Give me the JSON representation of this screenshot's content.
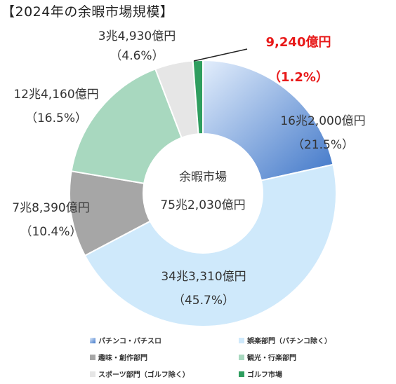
{
  "page_title": "【2024年の余暇市場規模】",
  "chart_data": {
    "type": "pie",
    "title": "【2024年の余暇市場規模】",
    "center_label_line1": "余暇市場",
    "center_label_line2": "75兆2,030億円",
    "categories": [
      "パチンコ・パチスロ",
      "娯楽部門（パチンコ除く）",
      "趣味・創作部門",
      "観光・行楽部門",
      "スポーツ部門（ゴルフ除く）",
      "ゴルフ市場"
    ],
    "values": [
      21.5,
      45.7,
      10.4,
      16.5,
      4.6,
      1.2
    ],
    "amount_labels": [
      "16兆2,000億円",
      "34兆3,310億円",
      "7兆8,390億円",
      "12兆4,160億円",
      "3兆4,930億円",
      "9,240億円"
    ],
    "percent_labels": [
      "（21.5%）",
      "（45.7%）",
      "（10.4%）",
      "（16.5%）",
      "（4.6%）",
      "（1.2%）"
    ],
    "colors": [
      "#5b8fd6",
      "#cfe9fb",
      "#a6a6a6",
      "#a8d8bf",
      "#e6e6e6",
      "#2f9e5f"
    ],
    "highlight_color": "#e81919",
    "legend_placement": "bottom"
  }
}
